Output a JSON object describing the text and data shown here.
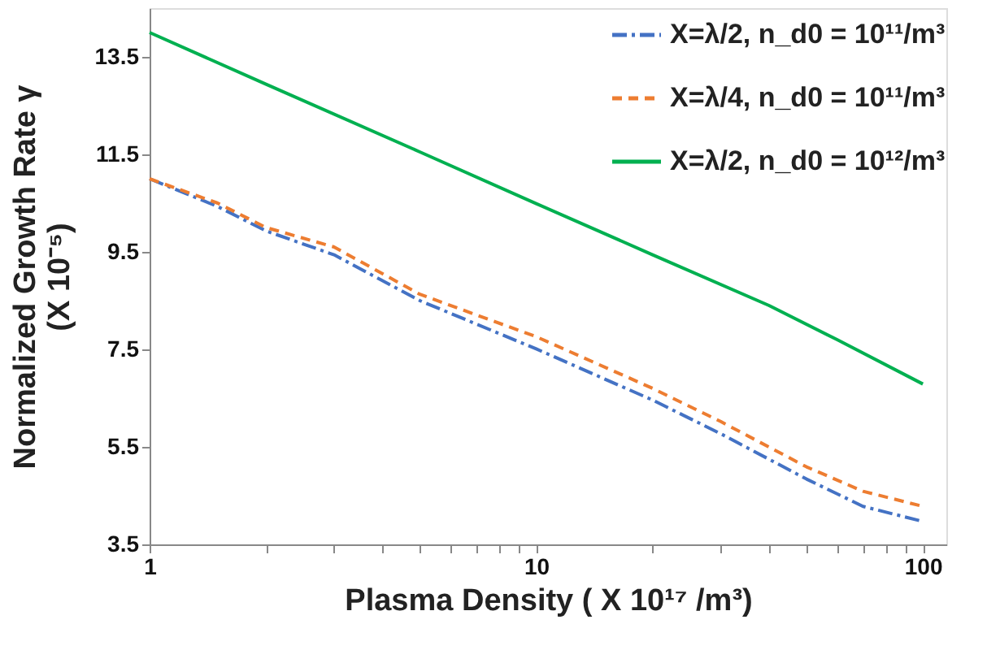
{
  "chart_data": {
    "type": "line",
    "xlabel": "Plasma  Density ( X 10¹⁷ /m³)",
    "ylabel": "Normalized Growth Rate γ\n(X 10⁻⁵)",
    "log": "x",
    "grid": false,
    "legend": "top right",
    "marker": "none",
    "xlim": [
      1,
      115
    ],
    "ylim": [
      3.5,
      14.5
    ],
    "xticks": [
      1,
      {
        "value": 2,
        "label": null
      },
      {
        "value": 3,
        "label": null
      },
      {
        "value": 4,
        "label": null
      },
      {
        "value": 5,
        "label": null
      },
      {
        "value": 6,
        "label": null
      },
      {
        "value": 7,
        "label": null
      },
      {
        "value": 8,
        "label": null
      },
      {
        "value": 9,
        "label": null
      },
      10,
      {
        "value": 20,
        "label": null
      },
      {
        "value": 30,
        "label": null
      },
      {
        "value": 40,
        "label": null
      },
      {
        "value": 50,
        "label": null
      },
      {
        "value": 60,
        "label": null
      },
      {
        "value": 70,
        "label": null
      },
      {
        "value": 80,
        "label": null
      },
      {
        "value": 90,
        "label": null
      },
      100
    ],
    "yticks": [
      3.5,
      5.5,
      7.5,
      9.5,
      11.5,
      13.5
    ],
    "series": [
      {
        "name": "X=λ/2, n_d0 = 10¹¹/m³",
        "color": "#4472c4",
        "line_style": "dashdot",
        "x": [
          1,
          1.5,
          2,
          3,
          5,
          10,
          20,
          30,
          50,
          70,
          100
        ],
        "values": [
          11.0,
          10.43,
          9.93,
          9.44,
          8.5,
          7.51,
          6.46,
          5.77,
          4.84,
          4.28,
          3.97
        ]
      },
      {
        "name": "X=λ/4, n_d0 = 10¹¹/m³",
        "color": "#ed7d31",
        "line_style": "dashed",
        "x": [
          1,
          1.5,
          2,
          3,
          5,
          10,
          20,
          30,
          50,
          70,
          100
        ],
        "values": [
          11.0,
          10.5,
          10.0,
          9.6,
          8.63,
          7.76,
          6.7,
          6.02,
          5.09,
          4.59,
          4.28
        ]
      },
      {
        "name": "X=λ/2, n_d0 = 10¹²/m³",
        "color": "#00b050",
        "line_style": "solid",
        "x": [
          1,
          2,
          5,
          10,
          20,
          40,
          60,
          100
        ],
        "values": [
          14.0,
          12.94,
          11.55,
          10.49,
          9.44,
          8.4,
          7.7,
          6.79
        ]
      }
    ]
  }
}
